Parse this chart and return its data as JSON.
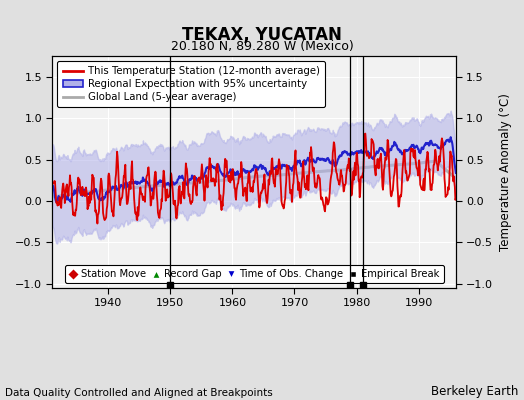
{
  "title": "TEKAX, YUCATAN",
  "subtitle": "20.180 N, 89.280 W (Mexico)",
  "xlabel_note": "Data Quality Controlled and Aligned at Breakpoints",
  "xlabel_right": "Berkeley Earth",
  "ylabel": "Temperature Anomaly (°C)",
  "xlim": [
    1931,
    1996
  ],
  "ylim": [
    -1.05,
    1.75
  ],
  "yticks": [
    -1,
    -0.5,
    0,
    0.5,
    1,
    1.5
  ],
  "xticks": [
    1940,
    1950,
    1960,
    1970,
    1980,
    1990
  ],
  "bg_color": "#e0e0e0",
  "plot_bg_color": "#f2f2f2",
  "grid_color": "#ffffff",
  "station_color": "#dd0000",
  "regional_color": "#2222cc",
  "regional_fill_color": "#b0b0e8",
  "global_color": "#aaaaaa",
  "empirical_break_years": [
    1950,
    1979,
    1981
  ],
  "random_seed": 42
}
